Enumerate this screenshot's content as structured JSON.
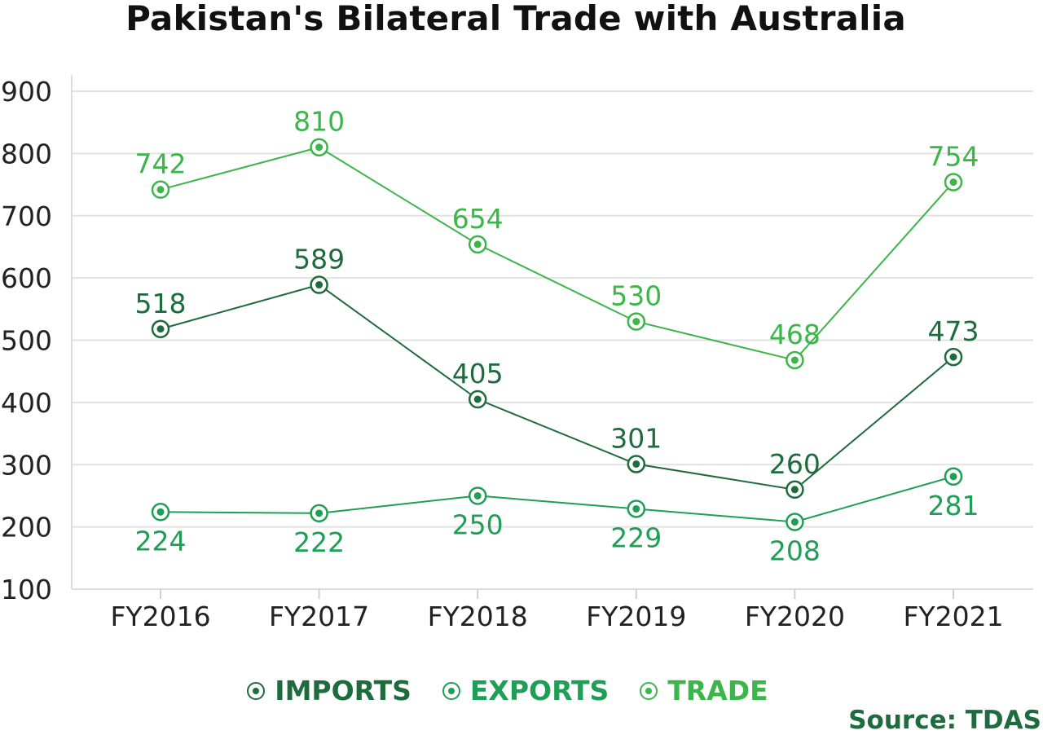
{
  "chart_data": {
    "type": "line",
    "title": "Pakistan's Bilateral Trade with Australia",
    "categories": [
      "FY2016",
      "FY2017",
      "FY2018",
      "FY2019",
      "FY2020",
      "FY2021"
    ],
    "ylim": [
      100,
      900
    ],
    "yticks": [
      100,
      200,
      300,
      400,
      500,
      600,
      700,
      800,
      900
    ],
    "grid": true,
    "legend_position": "bottom",
    "series": [
      {
        "name": "IMPORTS",
        "color": "#1e6b3d",
        "values": [
          518,
          589,
          405,
          301,
          260,
          473
        ],
        "label_position": "above"
      },
      {
        "name": "EXPORTS",
        "color": "#1f9e55",
        "values": [
          224,
          222,
          250,
          229,
          208,
          281
        ],
        "label_position": "below"
      },
      {
        "name": "TRADE",
        "color": "#3cb54a",
        "values": [
          742,
          810,
          654,
          530,
          468,
          754
        ],
        "label_position": "above"
      }
    ],
    "source": "Source: TDAS"
  }
}
